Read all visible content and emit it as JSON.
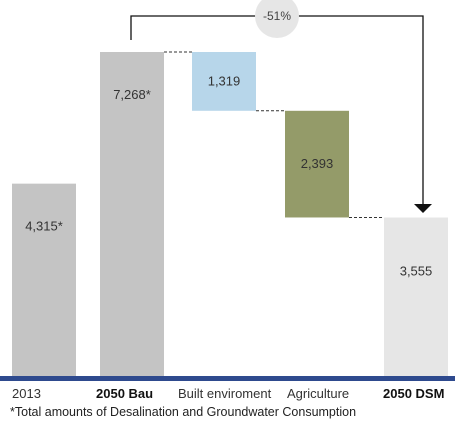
{
  "chart_data": {
    "type": "bar",
    "subtype": "waterfall",
    "categories": [
      "2013",
      "2050 Bau",
      "Built enviroment",
      "Agriculture",
      "2050 DSM"
    ],
    "values": [
      4315,
      7268,
      -1319,
      -2393,
      3555
    ],
    "value_labels": [
      "4,315*",
      "7,268*",
      "1,319",
      "2,393",
      "3,555"
    ],
    "bold_categories": [
      "2050 Bau",
      "2050 DSM"
    ],
    "annotation": "-51%",
    "footnote": "*Total amounts of Desalination and Groundwater Consumption",
    "colors": {
      "total": "#c4c4c4",
      "built_environment": "#b7d6ea",
      "agriculture": "#949b69",
      "dsm": "#e6e6e6",
      "baseline": "#2e4a8e",
      "arrow": "#111111",
      "badge": "#e6e6e6"
    },
    "ylim": [
      0,
      7268
    ]
  }
}
